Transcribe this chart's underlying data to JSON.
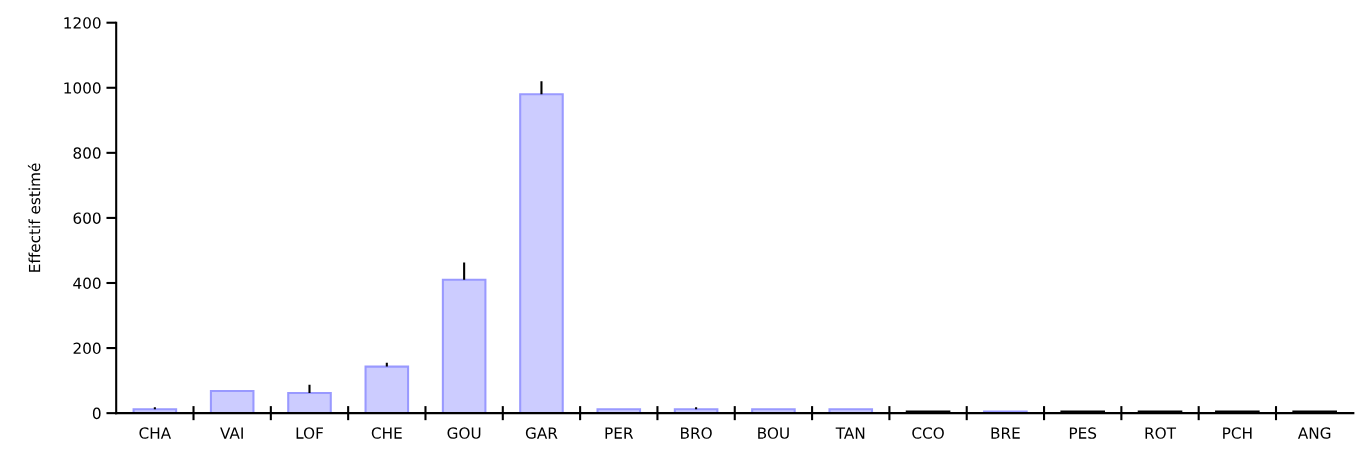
{
  "chart_data": {
    "type": "bar",
    "ylabel": "Effectif estimé",
    "categories": [
      "CHA",
      "VAI",
      "LOF",
      "CHE",
      "GOU",
      "GAR",
      "PER",
      "BRO",
      "BOU",
      "TAN",
      "CCO",
      "BRE",
      "PES",
      "ROT",
      "PCH",
      "ANG"
    ],
    "values": [
      12,
      68,
      62,
      143,
      410,
      980,
      12,
      12,
      12,
      12,
      5,
      5,
      5,
      5,
      5,
      5
    ],
    "colors": [
      "#ccccff",
      "#ccccff",
      "#ccccff",
      "#ccccff",
      "#ccccff",
      "#ccccff",
      "#ccccff",
      "#ccccff",
      "#ccccff",
      "#ccccff",
      "#000000",
      "#9999ff",
      "#000000",
      "#000000",
      "#000000",
      "#000000"
    ],
    "errors": [
      [
        12,
        18
      ],
      null,
      [
        62,
        87
      ],
      [
        143,
        155
      ],
      [
        410,
        463
      ],
      [
        980,
        1020
      ],
      null,
      [
        12,
        18
      ],
      null,
      null,
      null,
      null,
      null,
      null,
      null,
      null
    ],
    "ylim": [
      0,
      1200
    ],
    "yticks": [
      0,
      200,
      400,
      600,
      800,
      1000,
      1200
    ],
    "grid": false
  }
}
